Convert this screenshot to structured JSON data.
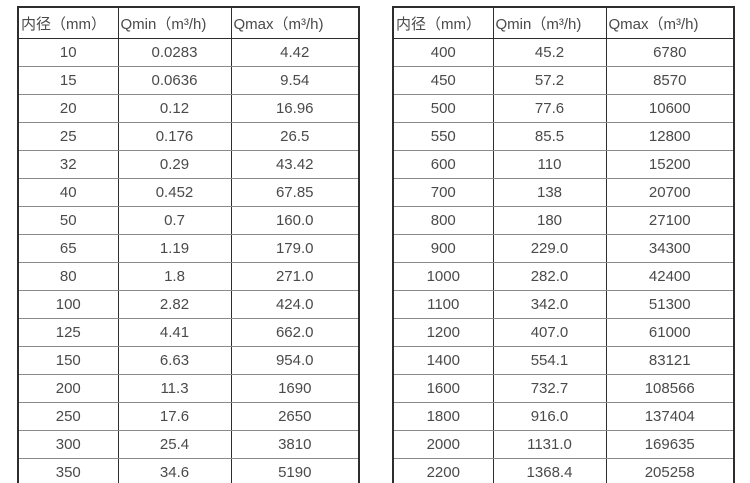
{
  "page": {
    "background": "#ffffff"
  },
  "colors": {
    "outer_border": "#2d2d2d",
    "vertical_border": "#2d2d2d",
    "horizontal_border": "#8a8a8a",
    "text": "#4a4a4a"
  },
  "tables": [
    {
      "name": "flow-rate-table-small-diameters",
      "headers": [
        "内径（mm）",
        "Qmin（m³/h)",
        "Qmax（m³/h)"
      ],
      "rows": [
        [
          "10",
          "0.0283",
          "4.42"
        ],
        [
          "15",
          "0.0636",
          "9.54"
        ],
        [
          "20",
          "0.12",
          "16.96"
        ],
        [
          "25",
          "0.176",
          "26.5"
        ],
        [
          "32",
          "0.29",
          "43.42"
        ],
        [
          "40",
          "0.452",
          "67.85"
        ],
        [
          "50",
          "0.7",
          "160.0"
        ],
        [
          "65",
          "1.19",
          "179.0"
        ],
        [
          "80",
          "1.8",
          "271.0"
        ],
        [
          "100",
          "2.82",
          "424.0"
        ],
        [
          "125",
          "4.41",
          "662.0"
        ],
        [
          "150",
          "6.63",
          "954.0"
        ],
        [
          "200",
          "11.3",
          "1690"
        ],
        [
          "250",
          "17.6",
          "2650"
        ],
        [
          "300",
          "25.4",
          "3810"
        ],
        [
          "350",
          "34.6",
          "5190"
        ]
      ]
    },
    {
      "name": "flow-rate-table-large-diameters",
      "headers": [
        "内径（mm）",
        "Qmin（m³/h)",
        "Qmax（m³/h)"
      ],
      "rows": [
        [
          "400",
          "45.2",
          "6780"
        ],
        [
          "450",
          "57.2",
          "8570"
        ],
        [
          "500",
          "77.6",
          "10600"
        ],
        [
          "550",
          "85.5",
          "12800"
        ],
        [
          "600",
          "110",
          "15200"
        ],
        [
          "700",
          "138",
          "20700"
        ],
        [
          "800",
          "180",
          "27100"
        ],
        [
          "900",
          "229.0",
          "34300"
        ],
        [
          "1000",
          "282.0",
          "42400"
        ],
        [
          "1100",
          "342.0",
          "51300"
        ],
        [
          "1200",
          "407.0",
          "61000"
        ],
        [
          "1400",
          "554.1",
          "83121"
        ],
        [
          "1600",
          "732.7",
          "108566"
        ],
        [
          "1800",
          "916.0",
          "137404"
        ],
        [
          "2000",
          "1131.0",
          "169635"
        ],
        [
          "2200",
          "1368.4",
          "205258"
        ]
      ]
    }
  ]
}
